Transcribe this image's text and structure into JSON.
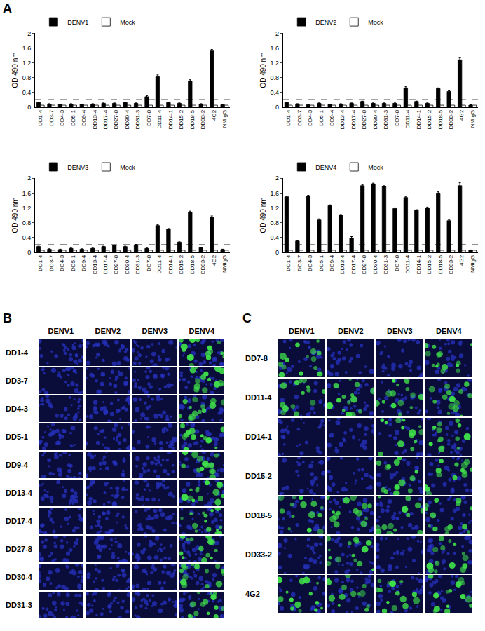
{
  "chart_data": [
    {
      "type": "bar",
      "categories": [
        "DD1-4",
        "DD3-7",
        "DD4-3",
        "DD5-1",
        "DD9-4",
        "DD13-4",
        "DD17-4",
        "DD27-8",
        "DD30-4",
        "DD31-3",
        "DD7-8",
        "DD11-4",
        "DD14-1",
        "DD15-2",
        "DD18-5",
        "DD33-2",
        "4G2",
        "NMIgG"
      ],
      "series": [
        {
          "name": "DENV1",
          "color": "#000000",
          "values": [
            0.12,
            0.08,
            0.07,
            0.08,
            0.07,
            0.08,
            0.1,
            0.1,
            0.12,
            0.1,
            0.28,
            0.82,
            0.12,
            0.1,
            0.7,
            0.08,
            1.52,
            0.06
          ],
          "errors": [
            0.01,
            0.01,
            0.01,
            0.01,
            0.01,
            0.01,
            0.01,
            0.01,
            0.01,
            0.01,
            0.03,
            0.05,
            0.01,
            0.01,
            0.04,
            0.01,
            0.04,
            0.01
          ]
        },
        {
          "name": "Mock",
          "color": "#ffffff",
          "values": [
            0.05,
            0.05,
            0.05,
            0.05,
            0.05,
            0.05,
            0.05,
            0.05,
            0.05,
            0.05,
            0.05,
            0.05,
            0.05,
            0.05,
            0.05,
            0.05,
            0.05,
            0.05
          ]
        }
      ],
      "y_label": "OD 490 nm",
      "ylim": [
        0,
        2
      ],
      "yticks": [
        0,
        0.4,
        0.8,
        1.2,
        1.6,
        2
      ],
      "cutoff": 0.2,
      "legend": "top left"
    },
    {
      "type": "bar",
      "categories": [
        "DD1-4",
        "DD3-7",
        "DD4-3",
        "DD5-1",
        "DD9-4",
        "DD13-4",
        "DD17-4",
        "DD27-8",
        "DD30-4",
        "DD31-3",
        "DD7-8",
        "DD11-4",
        "DD14-1",
        "DD15-2",
        "DD18-5",
        "DD33-2",
        "4G2",
        "NMIgG"
      ],
      "series": [
        {
          "name": "DENV2",
          "color": "#000000",
          "values": [
            0.12,
            0.08,
            0.06,
            0.1,
            0.07,
            0.08,
            0.1,
            0.15,
            0.1,
            0.1,
            0.1,
            0.52,
            0.15,
            0.1,
            0.5,
            0.42,
            1.28,
            0.05
          ],
          "errors": [
            0.01,
            0.01,
            0.01,
            0.01,
            0.01,
            0.01,
            0.01,
            0.01,
            0.01,
            0.01,
            0.01,
            0.04,
            0.01,
            0.01,
            0.02,
            0.02,
            0.05,
            0.01
          ]
        },
        {
          "name": "Mock",
          "color": "#ffffff",
          "values": [
            0.05,
            0.05,
            0.05,
            0.05,
            0.05,
            0.05,
            0.05,
            0.05,
            0.05,
            0.05,
            0.05,
            0.05,
            0.05,
            0.05,
            0.05,
            0.05,
            0.05,
            0.05
          ]
        }
      ],
      "y_label": "OD 490 nm",
      "ylim": [
        0,
        2
      ],
      "yticks": [
        0,
        0.4,
        0.8,
        1.2,
        1.6,
        2
      ],
      "cutoff": 0.2,
      "legend": "top left"
    },
    {
      "type": "bar",
      "categories": [
        "DD1-4",
        "DD3-7",
        "DD4-3",
        "DD5-1",
        "DD9-4",
        "DD13-4",
        "DD17-4",
        "DD27-8",
        "DD30-4",
        "DD31-3",
        "DD7-8",
        "DD11-4",
        "DD14-1",
        "DD15-2",
        "DD18-5",
        "DD33-2",
        "4G2",
        "NMIgG"
      ],
      "series": [
        {
          "name": "DENV3",
          "color": "#000000",
          "values": [
            0.15,
            0.08,
            0.07,
            0.1,
            0.08,
            0.1,
            0.15,
            0.18,
            0.15,
            0.2,
            0.1,
            0.72,
            0.62,
            0.27,
            1.08,
            0.12,
            0.95,
            0.07
          ],
          "errors": [
            0.01,
            0.01,
            0.01,
            0.01,
            0.01,
            0.01,
            0.01,
            0.01,
            0.01,
            0.01,
            0.01,
            0.02,
            0.02,
            0.01,
            0.03,
            0.01,
            0.03,
            0.01
          ]
        },
        {
          "name": "Mock",
          "color": "#ffffff",
          "values": [
            0.05,
            0.05,
            0.05,
            0.05,
            0.05,
            0.05,
            0.05,
            0.05,
            0.05,
            0.05,
            0.05,
            0.05,
            0.05,
            0.05,
            0.05,
            0.05,
            0.05,
            0.05
          ]
        }
      ],
      "y_label": "OD 490 nm",
      "ylim": [
        0,
        2
      ],
      "yticks": [
        0,
        0.4,
        0.8,
        1.2,
        1.6,
        2
      ],
      "cutoff": 0.2,
      "legend": "top left"
    },
    {
      "type": "bar",
      "categories": [
        "DD1-4",
        "DD3-7",
        "DD4-3",
        "DD5-1",
        "DD9-4",
        "DD13-4",
        "DD17-4",
        "DD27-8",
        "DD30-4",
        "DD31-3",
        "DD7-8",
        "DD11-4",
        "DD14-1",
        "DD15-2",
        "DD18-5",
        "DD33-2",
        "4G2",
        "NMIgG"
      ],
      "series": [
        {
          "name": "DENV4",
          "color": "#000000",
          "values": [
            1.5,
            0.3,
            1.52,
            0.87,
            1.26,
            1.0,
            0.38,
            1.8,
            1.85,
            1.78,
            1.18,
            1.48,
            1.13,
            1.2,
            1.6,
            0.85,
            1.8,
            0.05
          ],
          "errors": [
            0.02,
            0.01,
            0.02,
            0.03,
            0.02,
            0.02,
            0.04,
            0.03,
            0.02,
            0.02,
            0.02,
            0.03,
            0.02,
            0.02,
            0.04,
            0.02,
            0.08,
            0.01
          ]
        },
        {
          "name": "Mock",
          "color": "#ffffff",
          "values": [
            0.05,
            0.05,
            0.05,
            0.05,
            0.05,
            0.05,
            0.05,
            0.05,
            0.05,
            0.05,
            0.05,
            0.05,
            0.05,
            0.05,
            0.05,
            0.05,
            0.05,
            0.05
          ]
        }
      ],
      "y_label": "OD 490 nm",
      "ylim": [
        0,
        2
      ],
      "yticks": [
        0,
        0.4,
        0.8,
        1.2,
        1.6,
        2
      ],
      "cutoff": 0.2,
      "legend": "top left"
    }
  ],
  "panel_labels": [
    "A",
    "B",
    "C"
  ],
  "image_panels": [
    {
      "columns": [
        "DENV1",
        "DENV2",
        "DENV3",
        "DENV4"
      ],
      "rows": [
        {
          "label": "DD1-4",
          "stained": [
            false,
            false,
            false,
            true
          ]
        },
        {
          "label": "DD3-7",
          "stained": [
            false,
            false,
            false,
            true
          ]
        },
        {
          "label": "DD4-3",
          "stained": [
            false,
            false,
            false,
            true
          ]
        },
        {
          "label": "DD5-1",
          "stained": [
            false,
            false,
            false,
            true
          ]
        },
        {
          "label": "DD9-4",
          "stained": [
            false,
            false,
            false,
            true
          ]
        },
        {
          "label": "DD13-4",
          "stained": [
            false,
            false,
            false,
            true
          ]
        },
        {
          "label": "DD17-4",
          "stained": [
            false,
            false,
            false,
            true
          ]
        },
        {
          "label": "DD27-8",
          "stained": [
            false,
            false,
            false,
            true
          ]
        },
        {
          "label": "DD30-4",
          "stained": [
            false,
            false,
            false,
            true
          ]
        },
        {
          "label": "DD31-3",
          "stained": [
            false,
            false,
            false,
            true
          ]
        }
      ]
    },
    {
      "columns": [
        "DENV1",
        "DENV2",
        "DENV3",
        "DENV4"
      ],
      "rows": [
        {
          "label": "DD7-8",
          "stained": [
            true,
            false,
            false,
            true
          ]
        },
        {
          "label": "DD11-4",
          "stained": [
            true,
            true,
            true,
            true
          ]
        },
        {
          "label": "DD14-1",
          "stained": [
            false,
            false,
            true,
            true
          ]
        },
        {
          "label": "DD15-2",
          "stained": [
            false,
            false,
            true,
            true
          ]
        },
        {
          "label": "DD18-5",
          "stained": [
            true,
            true,
            true,
            true
          ]
        },
        {
          "label": "DD33-2",
          "stained": [
            false,
            true,
            false,
            true
          ]
        },
        {
          "label": "4G2",
          "stained": [
            true,
            true,
            true,
            true
          ]
        }
      ]
    }
  ]
}
